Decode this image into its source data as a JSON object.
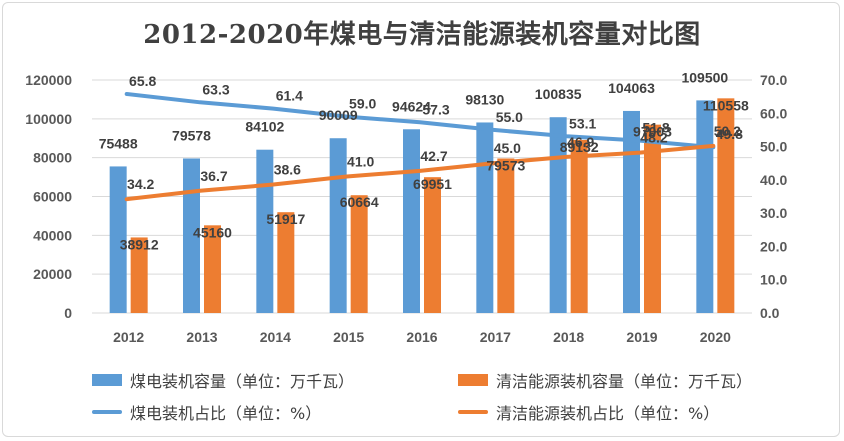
{
  "chart_data": {
    "type": "bar",
    "title": "2012-2020年煤电与清洁能源装机容量对比图",
    "categories": [
      "2012",
      "2013",
      "2014",
      "2015",
      "2016",
      "2017",
      "2018",
      "2019",
      "2020"
    ],
    "series": [
      {
        "name": "煤电装机容量（单位：万千瓦）",
        "type": "bar",
        "axis": "left",
        "color": "#5b9bd5",
        "values": [
          75488,
          79578,
          84102,
          90009,
          94624,
          98130,
          100835,
          104063,
          109500
        ]
      },
      {
        "name": "清洁能源装机容量（单位：万千瓦）",
        "type": "bar",
        "axis": "left",
        "color": "#ed7d31",
        "values": [
          38912,
          45160,
          51917,
          60664,
          69951,
          79573,
          89132,
          97003,
          110558
        ]
      },
      {
        "name": "煤电装机占比（单位：%）",
        "type": "line",
        "axis": "right",
        "color": "#5b9bd5",
        "values": [
          65.8,
          63.3,
          61.4,
          59.0,
          57.3,
          55.0,
          53.1,
          51.8,
          49.8
        ],
        "labels": [
          "65.8",
          "63.3",
          "61.4",
          "59.0",
          "57.3",
          "55.0",
          "53.1",
          "51.8",
          "49.8"
        ]
      },
      {
        "name": "清洁能源装机占比（单位：%）",
        "type": "line",
        "axis": "right",
        "color": "#ed7d31",
        "values": [
          34.2,
          36.7,
          38.6,
          41.0,
          42.7,
          45.0,
          46.9,
          48.2,
          50.2
        ],
        "labels": [
          "34.2",
          "36.7",
          "38.6",
          "41.0",
          "42.7",
          "45.0",
          "46.9",
          "48.2",
          "50.2"
        ]
      }
    ],
    "y_left": {
      "ylim": [
        0,
        120000
      ],
      "ticks": [
        "0",
        "20000",
        "40000",
        "60000",
        "80000",
        "100000",
        "120000"
      ]
    },
    "y_right": {
      "ylim": [
        0,
        70
      ],
      "ticks": [
        "0.0",
        "10.0",
        "20.0",
        "30.0",
        "40.0",
        "50.0",
        "60.0",
        "70.0"
      ]
    },
    "grid": true,
    "legend_position": "bottom"
  }
}
